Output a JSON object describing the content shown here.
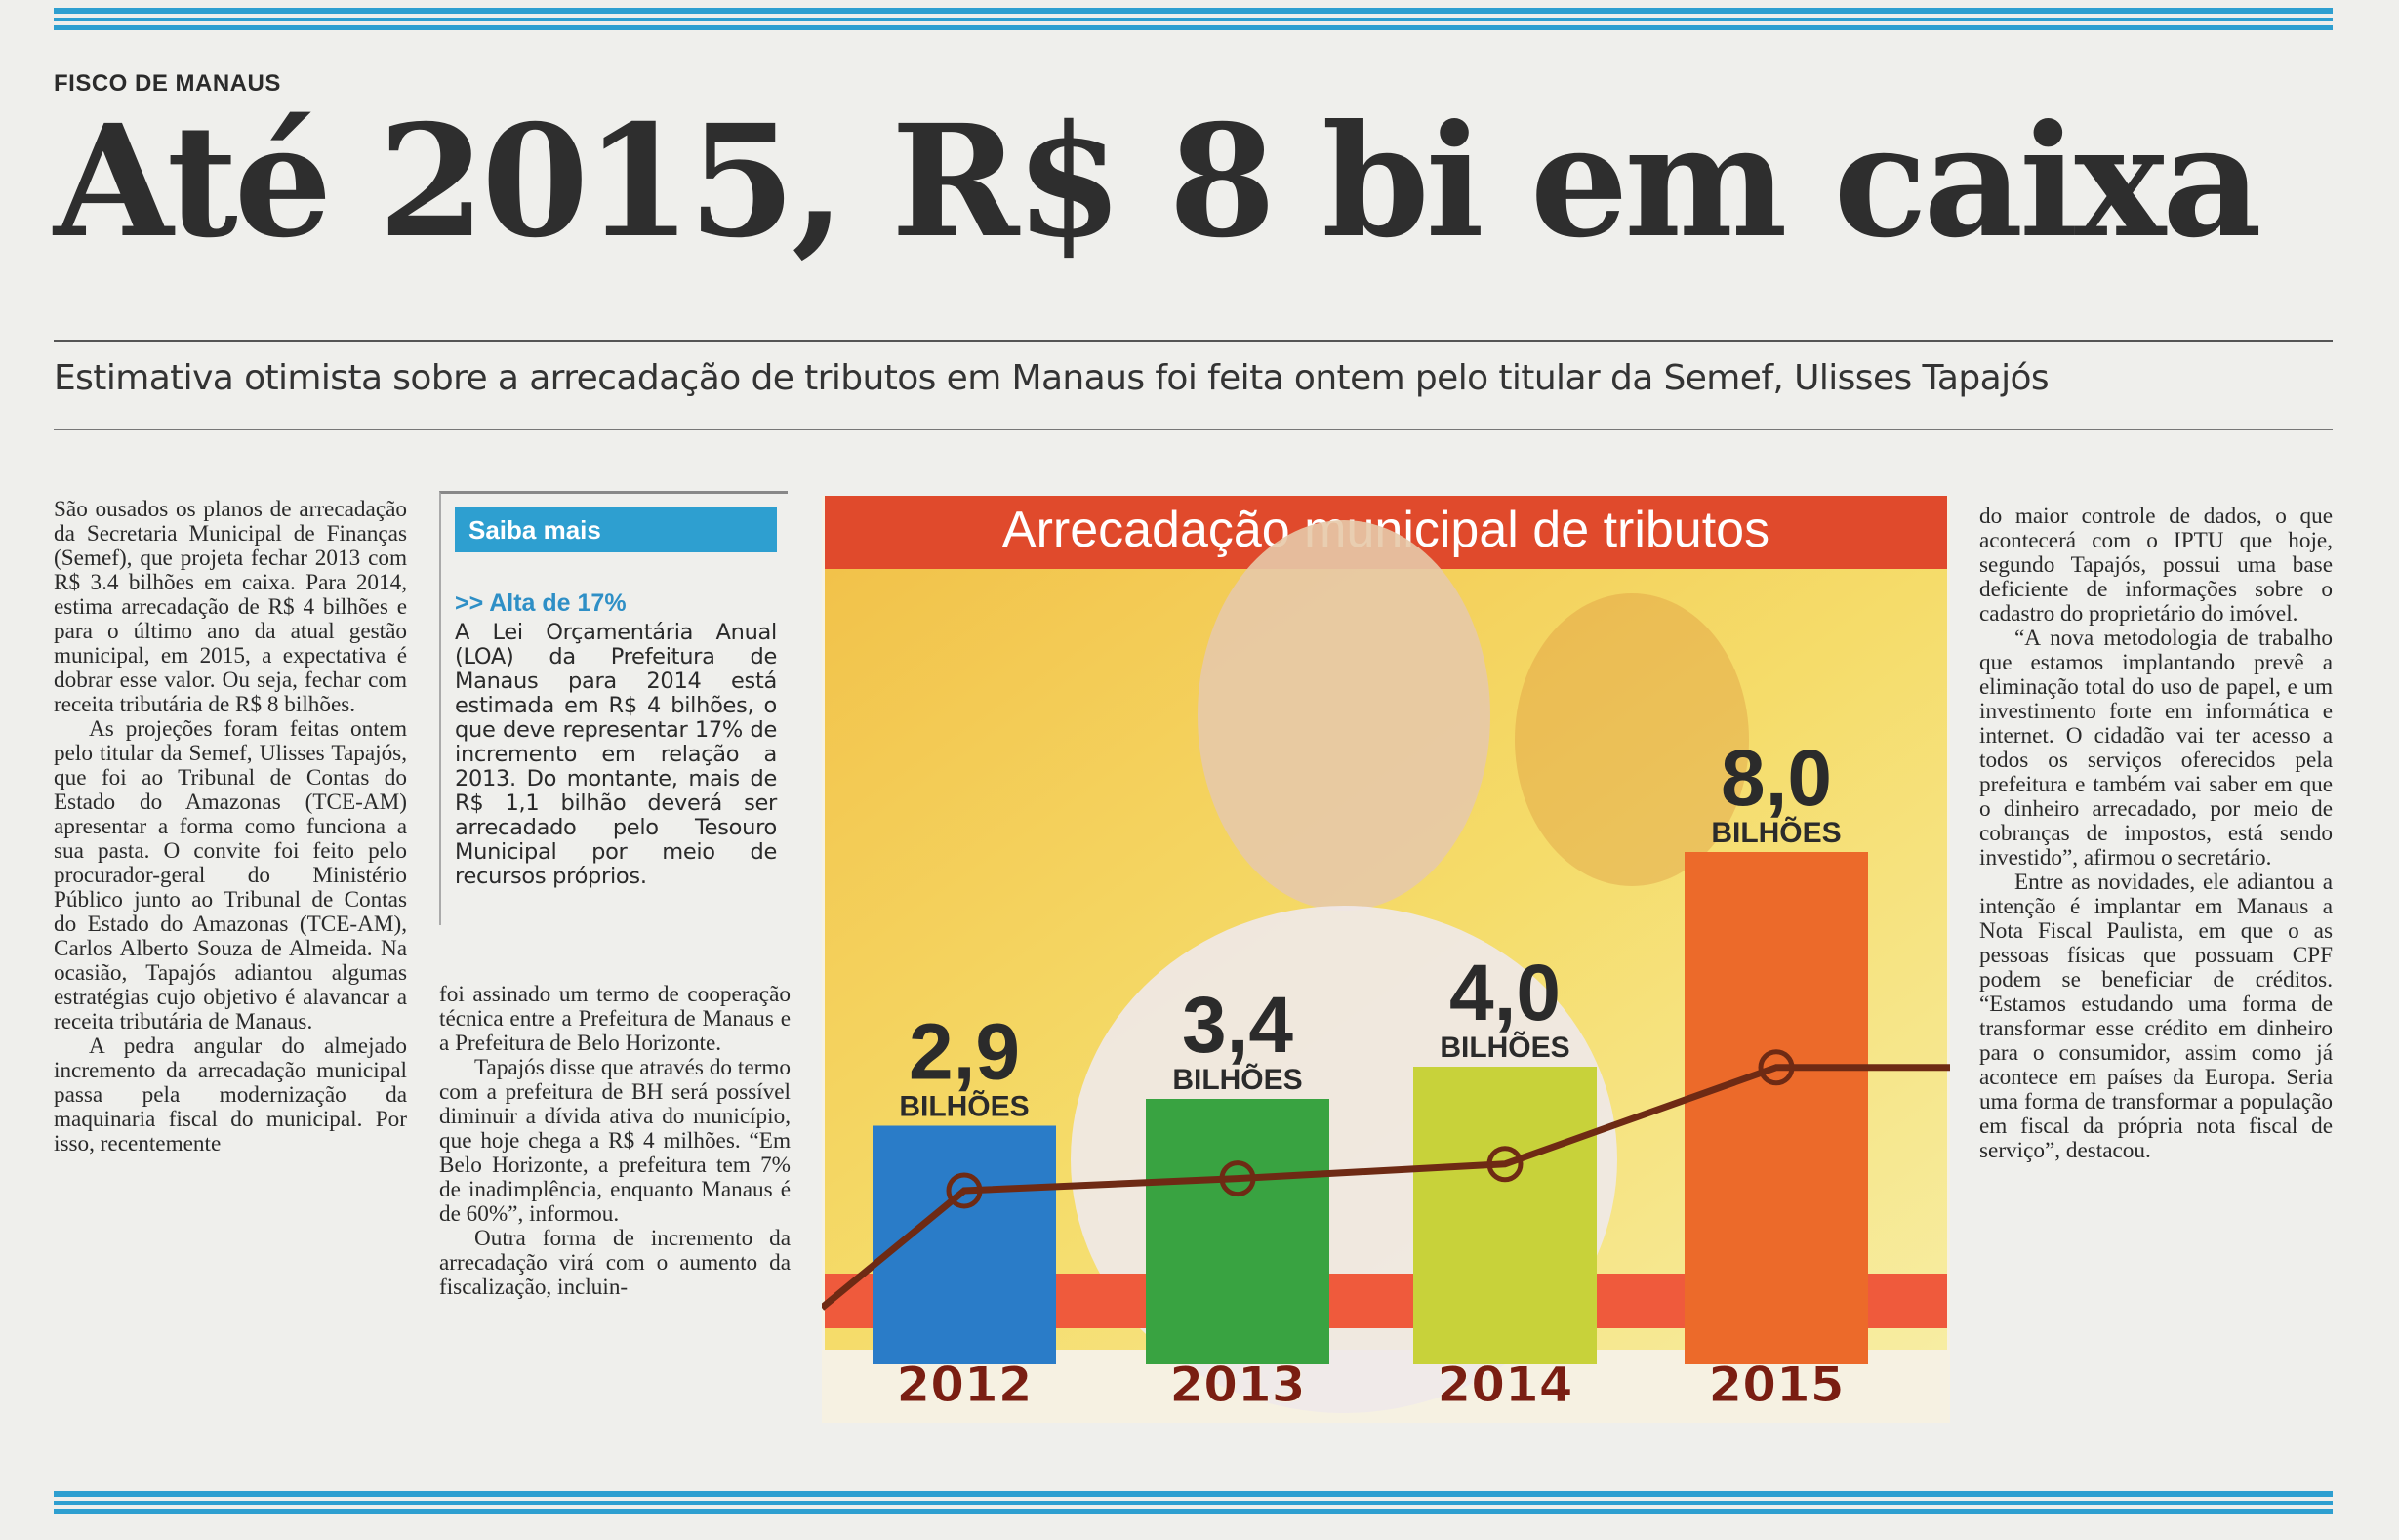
{
  "article": {
    "kicker": "FISCO DE MANAUS",
    "headline": "Até 2015, R$ 8 bi em caixa",
    "subheadline": "Estimativa otimista sobre a arrecadação de tributos em Manaus foi feita ontem pelo titular da Semef, Ulisses Tapajós",
    "col1": [
      "São ousados os planos de arrecadação da Secretaria Municipal de Finanças (Semef), que projeta fechar 2013 com R$ 3.4 bilhões em caixa. Para 2014, estima arrecadação de R$ 4 bilhões e para o último ano da atual gestão municipal, em 2015, a expectativa é dobrar esse valor. Ou seja, fechar com receita tributária de R$ 8 bilhões.",
      "As projeções foram feitas ontem pelo titular da Semef, Ulisses Tapajós, que foi ao Tribunal de Contas do Estado do Amazonas (TCE-AM) apresentar a forma como funciona a sua pasta. O convite foi feito pelo procurador-geral do Ministério Público junto ao Tribunal de Contas do Estado do Amazonas (TCE-AM), Carlos Alberto Souza de Almeida. Na ocasião, Tapajós adiantou algumas estratégias cujo objetivo é alavancar a receita tributária de Manaus.",
      "A pedra angular do almejado incremento da arrecadação municipal passa pela modernização da maquinaria fiscal do municipal. Por isso, recentemente"
    ],
    "col2": [
      "foi assinado um termo de cooperação técnica entre a Prefeitura de Manaus e a Prefeitura de Belo Horizonte.",
      "Tapajós disse que através do termo com a prefeitura de BH será possível diminuir a dívida ativa do município, que hoje chega a R$ 4 milhões. “Em Belo Horizonte, a prefeitura tem 7% de inadimplência, enquanto Manaus é de 60%”, informou.",
      "Outra forma de incremento da arrecadação virá com o aumento da fiscalização, incluin-"
    ],
    "col4": [
      "do maior controle de dados, o que acontecerá com o IPTU que hoje, segundo Tapajós, possui uma base deficiente de informações sobre o cadastro do proprietário do imóvel.",
      "“A nova metodologia de trabalho que estamos implantando prevê a eliminação total do uso de papel, e um investimento forte em informática e internet. O cidadão vai ter acesso a todos os serviços oferecidos pela prefeitura e também vai saber em que o dinheiro arrecadado, por meio de cobranças de impostos, está sendo investido”, afirmou o secretário.",
      "Entre as novidades, ele adiantou a intenção é implantar em Manaus a Nota Fiscal Paulista, em que o as pessoas físicas que possuam CPF podem se beneficiar de créditos. “Estamos estudando uma forma de transformar esse crédito em dinheiro para o consumidor, assim como já acontece em países da Europa. Seria uma forma de transformar a população em fiscal da própria nota fiscal de serviço”, destacou."
    ]
  },
  "sidebar": {
    "label": "Saiba mais",
    "subtitle": ">> Alta de 17%",
    "text": "A Lei Orçamentária Anual (LOA) da Prefeitura de Manaus para 2014 está estimada em R$ 4 bilhões, o que deve representar 17% de incremento em relação a 2013. Do montante, mais de R$ 1,1 bilhão deverá ser arrecadado pelo Tesouro Municipal por meio de recursos próprios."
  },
  "colors": {
    "accent_blue": "#2e9fd0",
    "chart_header_red": "#e04a2c",
    "bar_2012": "#2a7cc8",
    "bar_2013": "#39a341",
    "bar_2014": "#c8d23a",
    "bar_2015": "#ec6a2a"
  },
  "chart_data": {
    "type": "bar",
    "title": "Arrecadação municipal de tributos",
    "categories": [
      "2012",
      "2013",
      "2014",
      "2015"
    ],
    "values": [
      2.9,
      3.4,
      4.0,
      8.0
    ],
    "value_labels": [
      "2,9",
      "3,4",
      "4,0",
      "8,0"
    ],
    "unit_label": "BILHÕES",
    "overlay": "line",
    "xlabel": "",
    "ylabel": ""
  }
}
